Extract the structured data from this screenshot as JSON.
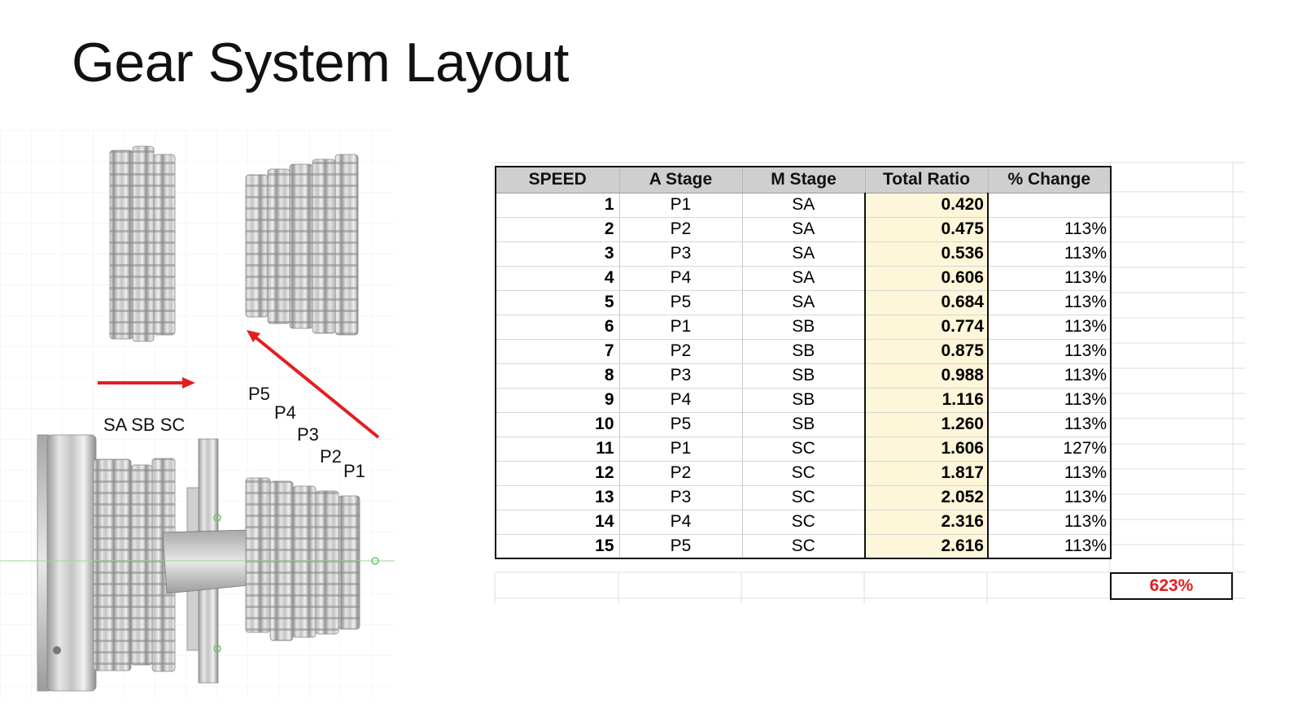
{
  "slide": {
    "title": "Gear System Layout"
  },
  "figure": {
    "labels": {
      "sa_sb_sc": "SA SB SC",
      "p5": "P5",
      "p4": "P4",
      "p3": "P3",
      "p2": "P2",
      "p1": "P1"
    },
    "arrow_color": "#e41e20"
  },
  "table": {
    "headers": {
      "speed": "SPEED",
      "a_stage": "A Stage",
      "m_stage": "M Stage",
      "total_ratio": "Total Ratio",
      "pct_change": "% Change"
    },
    "rows": [
      {
        "speed": "1",
        "a": "P1",
        "m": "SA",
        "total": "0.420",
        "change": ""
      },
      {
        "speed": "2",
        "a": "P2",
        "m": "SA",
        "total": "0.475",
        "change": "113%"
      },
      {
        "speed": "3",
        "a": "P3",
        "m": "SA",
        "total": "0.536",
        "change": "113%"
      },
      {
        "speed": "4",
        "a": "P4",
        "m": "SA",
        "total": "0.606",
        "change": "113%"
      },
      {
        "speed": "5",
        "a": "P5",
        "m": "SA",
        "total": "0.684",
        "change": "113%"
      },
      {
        "speed": "6",
        "a": "P1",
        "m": "SB",
        "total": "0.774",
        "change": "113%"
      },
      {
        "speed": "7",
        "a": "P2",
        "m": "SB",
        "total": "0.875",
        "change": "113%"
      },
      {
        "speed": "8",
        "a": "P3",
        "m": "SB",
        "total": "0.988",
        "change": "113%"
      },
      {
        "speed": "9",
        "a": "P4",
        "m": "SB",
        "total": "1.116",
        "change": "113%"
      },
      {
        "speed": "10",
        "a": "P5",
        "m": "SB",
        "total": "1.260",
        "change": "113%"
      },
      {
        "speed": "11",
        "a": "P1",
        "m": "SC",
        "total": "1.606",
        "change": "127%"
      },
      {
        "speed": "12",
        "a": "P2",
        "m": "SC",
        "total": "1.817",
        "change": "113%"
      },
      {
        "speed": "13",
        "a": "P3",
        "m": "SC",
        "total": "2.052",
        "change": "113%"
      },
      {
        "speed": "14",
        "a": "P4",
        "m": "SC",
        "total": "2.316",
        "change": "113%"
      },
      {
        "speed": "15",
        "a": "P5",
        "m": "SC",
        "total": "2.616",
        "change": "113%"
      }
    ],
    "overall_change": "623%",
    "colors": {
      "header_bg": "#cfcfcf",
      "total_ratio_bg": "#fdf6d9",
      "overall_change_text": "#e41e20"
    }
  }
}
